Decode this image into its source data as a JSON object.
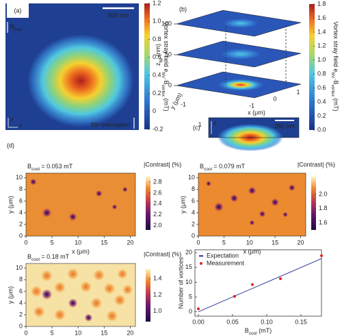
{
  "chart_data": [
    {
      "type": "heatmap",
      "label": "(a)",
      "scalebar": "500 nm",
      "field_label": [
        "B",
        "bias"
      ],
      "orientation_label": "NV orientation",
      "x_axis": "x",
      "y_axis": "y",
      "colorbar": {
        "label": [
          "Vortex stray field e",
          "NV",
          "·B",
          "vortex",
          " (mT)"
        ],
        "lim": [
          -0.2,
          1.2
        ],
        "ticks": [
          -0.2,
          0,
          0.2,
          0.4,
          0.6,
          0.8,
          {
            "value": 1,
            "label": "1.0"
          },
          1.2
        ]
      }
    },
    {
      "type": "3d-planes",
      "label": "(b)",
      "zlabel": [
        "z",
        "tip",
        " (nm)"
      ],
      "zlim": [
        0,
        100
      ],
      "zticks": [
        0,
        50,
        100
      ],
      "xlabel": "x (μm)",
      "xticks": [
        -1,
        0,
        1
      ],
      "ylabel": "y (μm)",
      "yticks": [
        -1,
        1
      ],
      "colorbar": {
        "label": [
          "Vortex stray field e",
          "NV",
          "·B",
          "vortex",
          " (mT)"
        ],
        "lim": [
          0,
          1.8
        ],
        "ticks": [
          {
            "value": 0,
            "label": "0.0"
          },
          0.2,
          0.4,
          0.6,
          0.8,
          {
            "value": 1,
            "label": "1.0"
          },
          1.2,
          1.4,
          1.6,
          1.8
        ]
      }
    },
    {
      "type": "image",
      "label": "(c)",
      "scalebar": "250 nm",
      "z_axis": "z"
    },
    {
      "type": "heatmap",
      "panel_label": "(d)",
      "title": [
        "B",
        "cool",
        " = 0.053 mT"
      ],
      "xlabel": "x (μm)",
      "ylabel": "y (μm)",
      "xlim": [
        0,
        21
      ],
      "xticks": [
        0,
        5,
        10,
        15,
        20
      ],
      "ylim": [
        0,
        10.8
      ],
      "yticks": [
        0,
        2,
        4,
        6,
        8,
        10
      ],
      "colorbar": {
        "label": "|Contrast| (%)",
        "lim": [
          1.92,
          2.9
        ],
        "ticks": [
          {
            "value": 2,
            "label": "2.0"
          },
          2.2,
          2.4,
          2.6,
          2.8
        ]
      }
    },
    {
      "type": "heatmap",
      "title": [
        "B",
        "cool",
        " = 0.079 mT"
      ],
      "xlabel": "x (μm)",
      "ylabel": "y (μm)",
      "xlim": [
        0,
        21
      ],
      "xticks": [
        0,
        5,
        10,
        15,
        20
      ],
      "ylim": [
        0,
        10.8
      ],
      "yticks": [
        0,
        2,
        4,
        6,
        8,
        10
      ],
      "colorbar": {
        "label": "|Contrast| (%)",
        "lim": [
          1.5,
          2.25
        ],
        "ticks": [
          1.6,
          1.8,
          {
            "value": 2,
            "label": "2.0"
          }
        ]
      }
    },
    {
      "type": "heatmap",
      "title": [
        "B",
        "cool",
        " = 0.18 mT"
      ],
      "xlabel": "x (μm)",
      "ylabel": "y (μm)",
      "xlim": [
        0,
        21
      ],
      "xticks": [
        0,
        5,
        10,
        15,
        20
      ],
      "ylim": [
        0,
        10.8
      ],
      "yticks": [
        0,
        2,
        4,
        6,
        8,
        10
      ],
      "colorbar": {
        "label": "|Contrast| (%)",
        "lim": [
          0.87,
          1.52
        ],
        "ticks": [
          {
            "value": 1,
            "label": "1.0"
          },
          1.2,
          1.4
        ]
      }
    },
    {
      "type": "scatter",
      "xlabel": [
        "B",
        "cool",
        " (mT)"
      ],
      "ylabel": "Number of vortices",
      "xlim": [
        -0.005,
        0.18
      ],
      "xticks": [
        {
          "value": 0,
          "label": "0.00"
        },
        0.05,
        {
          "value": 0.1,
          "label": "0.10"
        },
        0.15
      ],
      "ylim": [
        -1.5,
        21
      ],
      "yticks": [
        0,
        5,
        10,
        15,
        20
      ],
      "legend": "upper left",
      "series": [
        {
          "name": "Expectation",
          "color": "#2b3a9c",
          "mode": "line",
          "x": [
            0,
            0.18
          ],
          "values": [
            0,
            18
          ]
        },
        {
          "name": "Measurement",
          "color": "#e02424",
          "mode": "markers",
          "x": [
            0,
            0.053,
            0.079,
            0.12,
            0.18
          ],
          "values": [
            1,
            5.2,
            9.2,
            11.2,
            19
          ]
        }
      ]
    }
  ]
}
